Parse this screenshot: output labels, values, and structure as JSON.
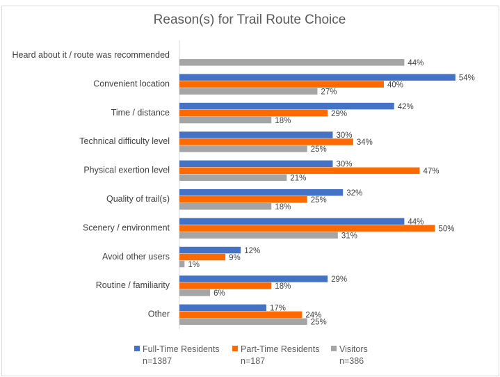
{
  "chart_data": {
    "type": "bar",
    "orientation": "horizontal",
    "title": "Reason(s) for Trail Route Choice",
    "categories": [
      "Heard about it / route was recommended",
      "Convenient location",
      "Time / distance",
      "Technical difficulty level",
      "Physical exertion level",
      "Quality of trail(s)",
      "Scenery / environment",
      "Avoid other users",
      "Routine / familiarity",
      "Other"
    ],
    "series": [
      {
        "name": "Full-Time Residents",
        "n": "n=1387",
        "color": "#4472C4",
        "values": [
          null,
          54,
          42,
          30,
          30,
          32,
          44,
          12,
          29,
          17
        ]
      },
      {
        "name": "Part-Time Residents",
        "n": "n=187",
        "color": "#FF6A00",
        "values": [
          null,
          40,
          29,
          34,
          47,
          25,
          50,
          9,
          18,
          24
        ]
      },
      {
        "name": "Visitors",
        "n": "n=386",
        "color": "#A5A5A5",
        "values": [
          44,
          27,
          18,
          25,
          21,
          18,
          31,
          1,
          6,
          25
        ]
      }
    ],
    "value_format": "percent",
    "xlim": [
      0,
      54
    ],
    "grid": false,
    "axis_labels_shown": false,
    "legend_position": "bottom"
  }
}
